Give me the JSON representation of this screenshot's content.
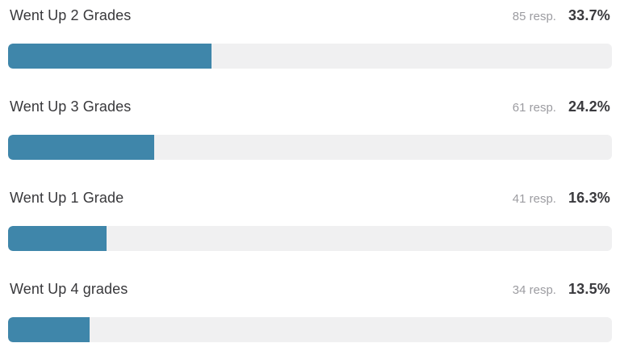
{
  "chart_data": {
    "type": "bar",
    "orientation": "horizontal",
    "title": "",
    "categories": [
      "Went Up 2 Grades",
      "Went Up 3 Grades",
      "Went Up 1 Grade",
      "Went Up 4 grades"
    ],
    "series": [
      {
        "name": "responses",
        "values": [
          85,
          61,
          41,
          34
        ]
      },
      {
        "name": "percentage",
        "values": [
          33.7,
          24.2,
          16.3,
          13.5
        ]
      }
    ],
    "xlim": [
      0,
      100
    ],
    "grid": false,
    "legend": false,
    "bar_color": "#3f86aa",
    "track_color": "#f0f0f1"
  },
  "colors": {
    "bar_fill": "#3f86aa",
    "bar_track": "#f0f0f1",
    "label_text": "#38383b",
    "responses_text": "#9c9ca1",
    "percent_text": "#3a3a3e",
    "background": "#ffffff"
  },
  "rows": [
    {
      "label": "Went Up 2 Grades",
      "responses_label": "85 resp.",
      "percent_label": "33.7%",
      "percent_value": 33.7
    },
    {
      "label": "Went Up 3 Grades",
      "responses_label": "61 resp.",
      "percent_label": "24.2%",
      "percent_value": 24.2
    },
    {
      "label": "Went Up 1 Grade",
      "responses_label": "41 resp.",
      "percent_label": "16.3%",
      "percent_value": 16.3
    },
    {
      "label": "Went Up 4 grades",
      "responses_label": "34 resp.",
      "percent_label": "13.5%",
      "percent_value": 13.5
    }
  ]
}
